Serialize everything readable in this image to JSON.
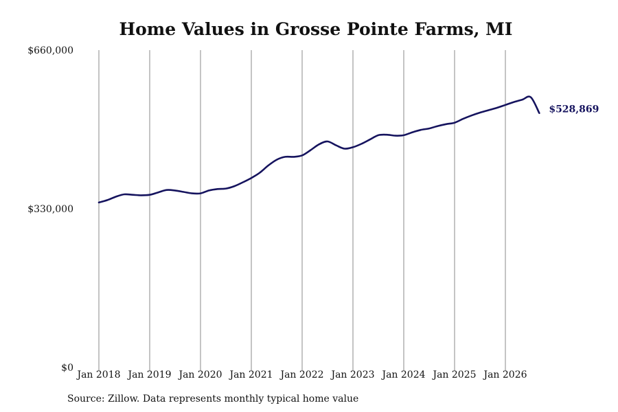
{
  "chart_data": {
    "type": "line",
    "title": "Home Values in Grosse Pointe Farms, MI",
    "source": "Source: Zillow. Data represents monthly typical home value",
    "ylim": [
      0,
      660000
    ],
    "y_ticks": [
      0,
      330000,
      660000
    ],
    "y_tick_labels": [
      "$0",
      "$330,000",
      "$660,000"
    ],
    "x_tick_labels": [
      "Jan 2018",
      "Jan 2019",
      "Jan 2020",
      "Jan 2021",
      "Jan 2022",
      "Jan 2023",
      "Jan 2024",
      "Jan 2025",
      "Jan 2026"
    ],
    "grid": "vertical",
    "line_color": "#15135e",
    "end_label": "$528,869",
    "series": [
      {
        "x": [
          "2018-01",
          "2018-03",
          "2018-05",
          "2018-07",
          "2018-09",
          "2018-11",
          "2019-01",
          "2019-03",
          "2019-05",
          "2019-07",
          "2019-09",
          "2019-11",
          "2020-01",
          "2020-03",
          "2020-05",
          "2020-07",
          "2020-09",
          "2020-11",
          "2021-01",
          "2021-03",
          "2021-05",
          "2021-07",
          "2021-09",
          "2021-11",
          "2022-01",
          "2022-03",
          "2022-05",
          "2022-07",
          "2022-09",
          "2022-11",
          "2023-01",
          "2023-03",
          "2023-05",
          "2023-07",
          "2023-09",
          "2023-11",
          "2024-01",
          "2024-03",
          "2024-05",
          "2024-07",
          "2024-09",
          "2024-11",
          "2025-01",
          "2025-03",
          "2025-05",
          "2025-07",
          "2025-09",
          "2025-11",
          "2026-01",
          "2026-03",
          "2026-05",
          "2026-07",
          "2026-09"
        ],
        "values": [
          343000,
          348000,
          355000,
          360000,
          359000,
          358000,
          359000,
          364000,
          369000,
          368000,
          365000,
          362000,
          362000,
          368000,
          371000,
          372000,
          377000,
          385000,
          394000,
          405000,
          420000,
          432000,
          438000,
          438000,
          441000,
          452000,
          464000,
          470000,
          462000,
          455000,
          458000,
          465000,
          474000,
          483000,
          484000,
          482000,
          483000,
          489000,
          494000,
          497000,
          502000,
          506000,
          509000,
          517000,
          524000,
          530000,
          535000,
          540000,
          546000,
          552000,
          557000,
          562000,
          529000
        ]
      }
    ]
  }
}
